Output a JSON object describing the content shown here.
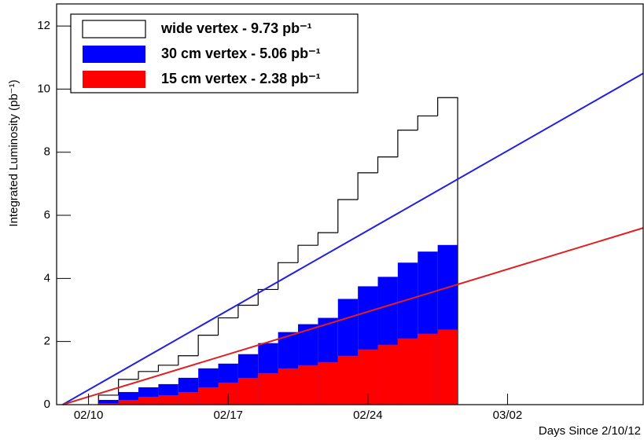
{
  "chart_data": {
    "type": "histogram",
    "xlabel": "Days Since 2/10/12",
    "ylabel": "Integrated Luminosity (pb⁻¹)",
    "bins": [
      0.5,
      1.5,
      2.5,
      3.5,
      4.5,
      5.5,
      6.5,
      7.5,
      8.5,
      9.5,
      10.5,
      11.5,
      12.5,
      13.5,
      14.5,
      15.5,
      16.5,
      17.5,
      18.5
    ],
    "series": [
      {
        "name": "wide vertex -  9.73 pb⁻¹",
        "color": "#000000",
        "fill": "hollow",
        "values": [
          0.3,
          0.8,
          1.05,
          1.25,
          1.55,
          2.2,
          2.75,
          3.15,
          3.65,
          4.5,
          5.05,
          5.45,
          6.5,
          7.35,
          7.85,
          8.7,
          9.15,
          9.73
        ]
      },
      {
        "name": "30 cm vertex -  5.06 pb⁻¹",
        "color": "#0000ff",
        "fill": "solid",
        "values": [
          0.15,
          0.4,
          0.55,
          0.65,
          0.85,
          1.15,
          1.3,
          1.6,
          1.95,
          2.3,
          2.55,
          2.75,
          3.35,
          3.75,
          4.05,
          4.5,
          4.85,
          5.06
        ]
      },
      {
        "name": "15 cm vertex -  2.38 pb⁻¹",
        "color": "#ff0000",
        "fill": "solid",
        "values": [
          0.05,
          0.15,
          0.25,
          0.3,
          0.4,
          0.55,
          0.7,
          0.85,
          1.0,
          1.15,
          1.25,
          1.35,
          1.55,
          1.75,
          1.9,
          2.1,
          2.25,
          2.38
        ]
      }
    ],
    "lines": [
      {
        "color": "#2020e0",
        "x": [
          -1.3,
          27.8
        ],
        "values": [
          0,
          10.5
        ]
      },
      {
        "color": "#e02020",
        "x": [
          -1.3,
          27.8
        ],
        "values": [
          0,
          5.6
        ]
      }
    ],
    "xlim": [
      -1.6,
      27.8
    ],
    "xticks": [
      {
        "value": 0,
        "label": "02/10"
      },
      {
        "value": 7,
        "label": "02/17"
      },
      {
        "value": 14,
        "label": "02/24"
      },
      {
        "value": 21,
        "label": "03/02"
      }
    ],
    "ylim": [
      0,
      12.7
    ],
    "yticks": [
      0,
      2,
      4,
      6,
      8,
      10,
      12
    ]
  }
}
